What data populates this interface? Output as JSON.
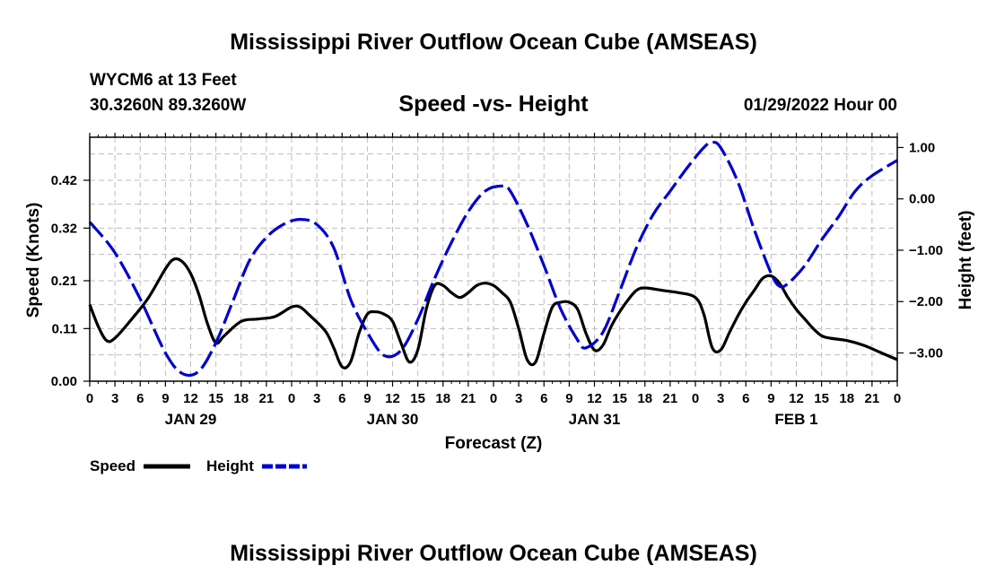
{
  "page": {
    "title": "Mississippi River Outflow Ocean Cube (AMSEAS)",
    "footer_title": "Mississippi River Outflow Ocean Cube (AMSEAS)"
  },
  "station": {
    "name_line": "WYCM6 at 13 Feet",
    "coords_line": "30.3260N  89.3260W",
    "datetime": "01/29/2022 Hour 00"
  },
  "chart_data": {
    "type": "line",
    "title": "Speed -vs- Height",
    "xlabel": "Forecast (Z)",
    "ylabel_left": "Speed (Knots)",
    "ylabel_right": "Height (feet)",
    "x_hours_range": [
      0,
      96
    ],
    "x_tick_labels": [
      "0",
      "3",
      "6",
      "9",
      "12",
      "15",
      "18",
      "21",
      "0",
      "3",
      "6",
      "9",
      "12",
      "15",
      "18",
      "21",
      "0",
      "3",
      "6",
      "9",
      "12",
      "15",
      "18",
      "21",
      "0",
      "3",
      "6",
      "9",
      "12",
      "15",
      "18",
      "21",
      "0"
    ],
    "day_labels": [
      {
        "hour": 12,
        "label": "JAN 29"
      },
      {
        "hour": 36,
        "label": "JAN 30"
      },
      {
        "hour": 60,
        "label": "JAN 31"
      },
      {
        "hour": 84,
        "label": "FEB 1"
      }
    ],
    "y_left": {
      "ticks": [
        0.0,
        0.11,
        0.21,
        0.32,
        0.42
      ],
      "tick_labels": [
        "0.00",
        "0.11",
        "0.21",
        "0.32",
        "0.42"
      ],
      "range": [
        0,
        0.51
      ]
    },
    "y_right": {
      "ticks": [
        1.0,
        0.0,
        -1.0,
        -2.0,
        -3.0
      ],
      "tick_labels": [
        "1.00",
        "0.00",
        "−1.00",
        "−2.00",
        "−3.00"
      ],
      "range": [
        -3.55,
        1.2
      ]
    },
    "grid": true,
    "series": [
      {
        "name": "Speed",
        "axis": "left",
        "color": "#000000",
        "style": "solid",
        "points": [
          [
            0,
            0.16
          ],
          [
            1,
            0.115
          ],
          [
            2,
            0.085
          ],
          [
            3,
            0.09
          ],
          [
            5,
            0.13
          ],
          [
            7,
            0.175
          ],
          [
            9,
            0.235
          ],
          [
            10,
            0.255
          ],
          [
            11,
            0.25
          ],
          [
            12,
            0.225
          ],
          [
            13,
            0.18
          ],
          [
            14,
            0.12
          ],
          [
            15,
            0.08
          ],
          [
            16,
            0.095
          ],
          [
            18,
            0.125
          ],
          [
            20,
            0.13
          ],
          [
            22,
            0.135
          ],
          [
            24,
            0.155
          ],
          [
            25,
            0.155
          ],
          [
            26,
            0.14
          ],
          [
            28,
            0.105
          ],
          [
            29,
            0.07
          ],
          [
            30,
            0.03
          ],
          [
            31,
            0.04
          ],
          [
            32,
            0.1
          ],
          [
            33,
            0.14
          ],
          [
            34,
            0.145
          ],
          [
            35,
            0.14
          ],
          [
            36,
            0.125
          ],
          [
            37,
            0.08
          ],
          [
            38,
            0.04
          ],
          [
            39,
            0.065
          ],
          [
            40,
            0.15
          ],
          [
            41,
            0.2
          ],
          [
            42,
            0.2
          ],
          [
            43,
            0.185
          ],
          [
            44,
            0.175
          ],
          [
            45,
            0.185
          ],
          [
            46,
            0.2
          ],
          [
            47,
            0.205
          ],
          [
            48,
            0.2
          ],
          [
            49,
            0.185
          ],
          [
            50,
            0.165
          ],
          [
            51,
            0.11
          ],
          [
            52,
            0.045
          ],
          [
            53,
            0.04
          ],
          [
            54,
            0.1
          ],
          [
            55,
            0.155
          ],
          [
            56,
            0.165
          ],
          [
            57,
            0.165
          ],
          [
            58,
            0.15
          ],
          [
            59,
            0.1
          ],
          [
            60,
            0.065
          ],
          [
            61,
            0.075
          ],
          [
            62,
            0.115
          ],
          [
            63,
            0.145
          ],
          [
            64,
            0.17
          ],
          [
            65,
            0.19
          ],
          [
            66,
            0.195
          ],
          [
            68,
            0.19
          ],
          [
            70,
            0.185
          ],
          [
            72,
            0.175
          ],
          [
            73,
            0.14
          ],
          [
            74,
            0.07
          ],
          [
            75,
            0.065
          ],
          [
            76,
            0.1
          ],
          [
            77,
            0.135
          ],
          [
            78,
            0.165
          ],
          [
            79,
            0.19
          ],
          [
            80,
            0.215
          ],
          [
            81,
            0.22
          ],
          [
            82,
            0.205
          ],
          [
            83,
            0.175
          ],
          [
            84,
            0.15
          ],
          [
            85,
            0.13
          ],
          [
            86,
            0.11
          ],
          [
            87,
            0.095
          ],
          [
            88,
            0.09
          ],
          [
            90,
            0.085
          ],
          [
            92,
            0.075
          ],
          [
            94,
            0.06
          ],
          [
            96,
            0.045
          ]
        ]
      },
      {
        "name": "Height",
        "axis": "right",
        "color": "#0000cc",
        "style": "dashed",
        "points": [
          [
            0,
            -0.45
          ],
          [
            3,
            -1.05
          ],
          [
            6,
            -1.95
          ],
          [
            9,
            -3.0
          ],
          [
            11,
            -3.4
          ],
          [
            13,
            -3.35
          ],
          [
            15,
            -2.8
          ],
          [
            17,
            -2.0
          ],
          [
            19,
            -1.2
          ],
          [
            21,
            -0.75
          ],
          [
            23,
            -0.5
          ],
          [
            25,
            -0.4
          ],
          [
            27,
            -0.5
          ],
          [
            29,
            -0.95
          ],
          [
            31,
            -1.95
          ],
          [
            33,
            -2.6
          ],
          [
            35,
            -3.05
          ],
          [
            37,
            -2.95
          ],
          [
            39,
            -2.35
          ],
          [
            41,
            -1.55
          ],
          [
            43,
            -0.85
          ],
          [
            45,
            -0.25
          ],
          [
            47,
            0.15
          ],
          [
            49,
            0.25
          ],
          [
            50,
            0.15
          ],
          [
            52,
            -0.5
          ],
          [
            54,
            -1.3
          ],
          [
            56,
            -2.15
          ],
          [
            58,
            -2.75
          ],
          [
            59,
            -2.9
          ],
          [
            61,
            -2.6
          ],
          [
            63,
            -1.8
          ],
          [
            65,
            -0.95
          ],
          [
            67,
            -0.3
          ],
          [
            69,
            0.15
          ],
          [
            71,
            0.6
          ],
          [
            73,
            1.0
          ],
          [
            74,
            1.1
          ],
          [
            75,
            1.0
          ],
          [
            77,
            0.35
          ],
          [
            79,
            -0.6
          ],
          [
            81,
            -1.45
          ],
          [
            82,
            -1.7
          ],
          [
            83,
            -1.65
          ],
          [
            85,
            -1.3
          ],
          [
            87,
            -0.8
          ],
          [
            89,
            -0.35
          ],
          [
            91,
            0.15
          ],
          [
            93,
            0.45
          ],
          [
            96,
            0.75
          ]
        ]
      }
    ],
    "legend": {
      "placement": "bottom-left",
      "entries": [
        "Speed",
        "Height"
      ]
    }
  }
}
